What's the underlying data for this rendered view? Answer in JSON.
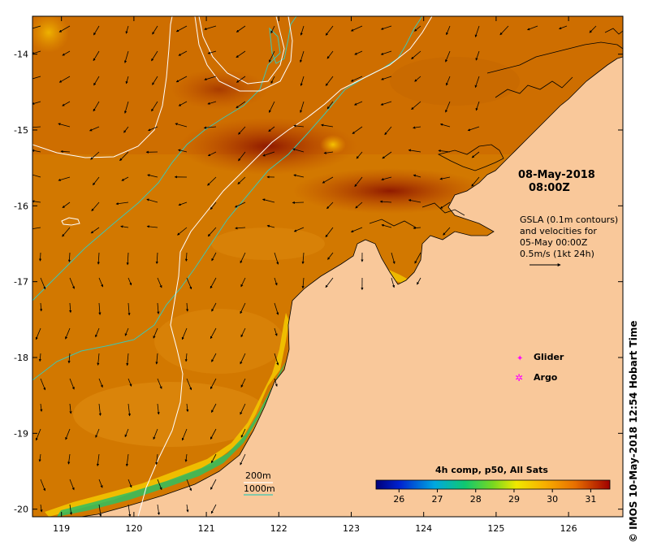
{
  "map": {
    "x_ticks": [
      "119",
      "120",
      "121",
      "122",
      "123",
      "124",
      "125",
      "126"
    ],
    "y_ticks": [
      "-14",
      "-15",
      "-16",
      "-17",
      "-18",
      "-19",
      "-20"
    ],
    "x_range": [
      118.6,
      126.75
    ],
    "y_range": [
      -20.1,
      -13.5
    ]
  },
  "annotations": {
    "date": "08-May-2018",
    "time": "08:00Z",
    "gsla_lines": [
      "GSLA (0.1m contours)",
      "and velocities for",
      "05-May 00:00Z",
      "0.5m/s (1kt 24h)"
    ],
    "glider_label": "Glider",
    "argo_label": "Argo",
    "depth_200": "200m",
    "depth_1000": "1000m"
  },
  "colorbar": {
    "title": "4h comp, p50, All Sats",
    "ticks": [
      "26",
      "27",
      "28",
      "29",
      "30",
      "31"
    ],
    "range": [
      25.4,
      31.5
    ]
  },
  "credit": "© IMOS 10-May-2018 12:54 Hobart Time",
  "colors": {
    "land": "#f9c89a",
    "coast": "#000000",
    "contour_200": "#ffffff",
    "contour_1000": "#3cc8b4",
    "glider": "#ff00ff",
    "argo": "#ff00ff",
    "sst_warm": "#d07000",
    "sst_hot": "#9a1c00"
  }
}
